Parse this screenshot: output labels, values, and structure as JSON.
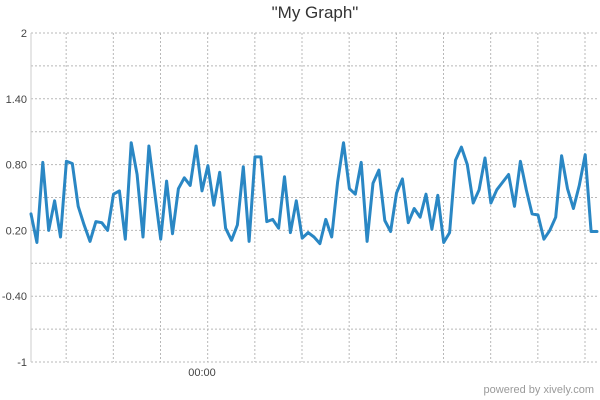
{
  "chart_data": {
    "type": "line",
    "title": "\"My Graph\"",
    "xlabel": "",
    "ylabel": "",
    "ylim": [
      -1,
      2
    ],
    "y_ticks": [
      {
        "value": 2,
        "label": "2"
      },
      {
        "value": 1.4,
        "label": "1.40"
      },
      {
        "value": 0.8,
        "label": "0.80"
      },
      {
        "value": 0.2,
        "label": "0.20"
      },
      {
        "value": -0.4,
        "label": "-0.40"
      },
      {
        "value": -1,
        "label": "-1"
      }
    ],
    "y_minor_ticks": [
      1.7,
      1.1,
      0.5,
      -0.1,
      -0.7
    ],
    "x_tick_labels": [
      {
        "index": 29,
        "label": "00:00"
      }
    ],
    "grid": true,
    "color": "#2a87c4",
    "series": [
      {
        "values": [
          0.35,
          0.09,
          0.82,
          0.2,
          0.47,
          0.14,
          0.83,
          0.81,
          0.42,
          0.25,
          0.1,
          0.28,
          0.27,
          0.2,
          0.53,
          0.56,
          0.12,
          1.0,
          0.71,
          0.14,
          0.97,
          0.54,
          0.12,
          0.65,
          0.17,
          0.58,
          0.68,
          0.61,
          0.97,
          0.56,
          0.79,
          0.43,
          0.73,
          0.22,
          0.11,
          0.25,
          0.78,
          0.1,
          0.87,
          0.87,
          0.28,
          0.3,
          0.22,
          0.69,
          0.18,
          0.47,
          0.13,
          0.18,
          0.14,
          0.08,
          0.3,
          0.14,
          0.64,
          1.0,
          0.58,
          0.53,
          0.82,
          0.1,
          0.63,
          0.75,
          0.29,
          0.19,
          0.54,
          0.67,
          0.27,
          0.4,
          0.32,
          0.53,
          0.21,
          0.52,
          0.09,
          0.18,
          0.84,
          0.96,
          0.8,
          0.45,
          0.57,
          0.86,
          0.45,
          0.57,
          0.64,
          0.71,
          0.42,
          0.83,
          0.57,
          0.35,
          0.34,
          0.12,
          0.2,
          0.32,
          0.88,
          0.58,
          0.4,
          0.61,
          0.89,
          0.19,
          0.19
        ]
      }
    ]
  },
  "footer": {
    "powered_by": "powered by xively.com"
  }
}
